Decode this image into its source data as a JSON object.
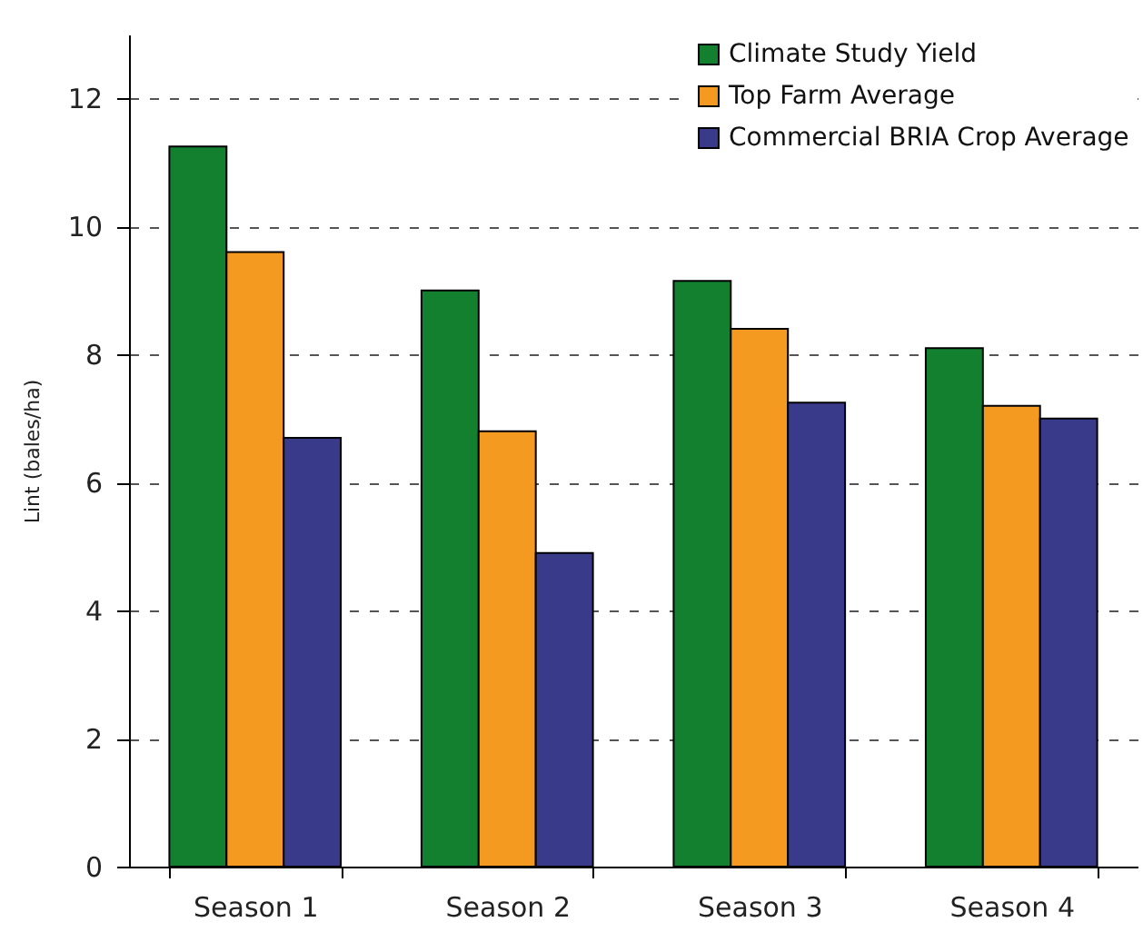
{
  "chart_data": {
    "type": "bar",
    "ylabel": "Lint (bales/ha)",
    "categories": [
      "Season 1",
      "Season 2",
      "Season 3",
      "Season 4"
    ],
    "series": [
      {
        "name": "Climate Study Yield",
        "color": "#12802f",
        "values": [
          11.25,
          9.0,
          9.15,
          8.1
        ]
      },
      {
        "name": "Top Farm Average",
        "color": "#f49a21",
        "values": [
          9.6,
          6.8,
          8.4,
          7.2
        ]
      },
      {
        "name": "Commercial BRIA Crop Average",
        "color": "#3a3a8a",
        "values": [
          6.7,
          4.9,
          7.25,
          7.0
        ]
      }
    ],
    "ylim": [
      0,
      13
    ],
    "yticks": [
      0,
      2,
      4,
      6,
      8,
      10,
      12
    ],
    "grid": "y",
    "legend": "top right"
  }
}
